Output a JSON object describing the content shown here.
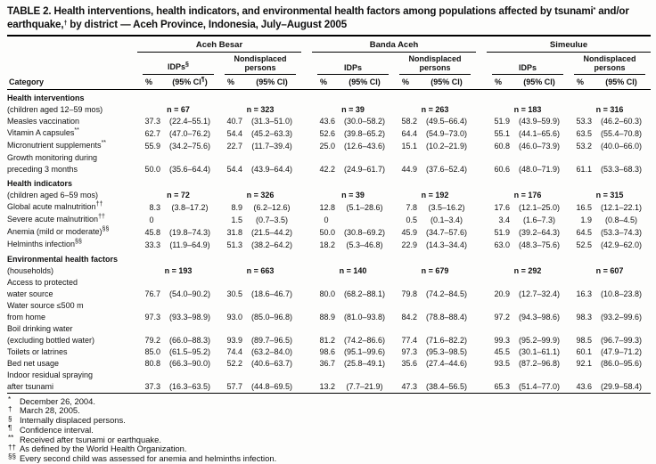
{
  "title_parts": [
    {
      "text": "TABLE 2. Health interventions, health indicators, and environmental health factors among populations affected by tsunami"
    },
    {
      "sup": "*"
    },
    {
      "text": " and/or earthquake,"
    },
    {
      "sup": "†"
    },
    {
      "text": " by district — Aceh Province, Indonesia, July–August 2005"
    }
  ],
  "header": {
    "category_label": "Category",
    "pct_label": "%",
    "ci_label": "(95% CI)",
    "ci_first": {
      "pre": "(95% CI",
      "sup": "¶",
      "post": ")"
    },
    "groups": [
      {
        "name": "Aceh Besar",
        "idps": "IDPs",
        "idps_sup": "§",
        "nondisplaced": "Nondisplaced persons"
      },
      {
        "name": "Banda Aceh",
        "idps": "IDPs",
        "idps_sup": "",
        "nondisplaced": "Nondisplaced persons"
      },
      {
        "name": "Simeulue",
        "idps": "IDPs",
        "idps_sup": "",
        "nondisplaced": "Nondisplaced persons"
      }
    ]
  },
  "rows": [
    {
      "t": "section",
      "label": "Health interventions"
    },
    {
      "t": "n",
      "label": "(children aged 12–59 mos)",
      "values": [
        "n = 67",
        "n = 323",
        "n = 39",
        "n = 263",
        "n = 183",
        "n = 316"
      ]
    },
    {
      "t": "item",
      "label": "Measles vaccination",
      "sup": "",
      "cells": [
        [
          "37.3",
          "(22.4–55.1)"
        ],
        [
          "40.7",
          "(31.3–51.0)"
        ],
        [
          "43.6",
          "(30.0–58.2)"
        ],
        [
          "58.2",
          "(49.5–66.4)"
        ],
        [
          "51.9",
          "(43.9–59.9)"
        ],
        [
          "53.3",
          "(46.2–60.3)"
        ]
      ]
    },
    {
      "t": "item",
      "label": "Vitamin A capsules",
      "sup": "**",
      "cells": [
        [
          "62.7",
          "(47.0–76.2)"
        ],
        [
          "54.4",
          "(45.2–63.3)"
        ],
        [
          "52.6",
          "(39.8–65.2)"
        ],
        [
          "64.4",
          "(54.9–73.0)"
        ],
        [
          "55.1",
          "(44.1–65.6)"
        ],
        [
          "63.5",
          "(55.4–70.8)"
        ]
      ]
    },
    {
      "t": "item",
      "label": "Micronutrient supplements",
      "sup": "**",
      "cells": [
        [
          "55.9",
          "(34.2–75.6)"
        ],
        [
          "22.7",
          "(11.7–39.4)"
        ],
        [
          "25.0",
          "(12.6–43.6)"
        ],
        [
          "15.1",
          "(10.2–21.9)"
        ],
        [
          "60.8",
          "(46.0–73.9)"
        ],
        [
          "53.2",
          "(40.0–66.0)"
        ]
      ]
    },
    {
      "t": "label",
      "label": "Growth monitoring during"
    },
    {
      "t": "cont",
      "label": "preceding 3 months",
      "cells": [
        [
          "50.0",
          "(35.6–64.4)"
        ],
        [
          "54.4",
          "(43.9–64.4)"
        ],
        [
          "42.2",
          "(24.9–61.7)"
        ],
        [
          "44.9",
          "(37.6–52.4)"
        ],
        [
          "60.6",
          "(48.0–71.9)"
        ],
        [
          "61.1",
          "(53.3–68.3)"
        ]
      ]
    },
    {
      "t": "section",
      "label": "Health indicators"
    },
    {
      "t": "n",
      "label": "(children aged 6–59 mos)",
      "values": [
        "n = 72",
        "n = 326",
        "n = 39",
        "n = 192",
        "n = 176",
        "n = 315"
      ]
    },
    {
      "t": "item",
      "label": "Global acute malnutrition",
      "sup": "††",
      "cells": [
        [
          "8.3",
          "(3.8–17.2)"
        ],
        [
          "8.9",
          "(6.2–12.6)"
        ],
        [
          "12.8",
          "(5.1–28.6)"
        ],
        [
          "7.8",
          "(3.5–16.2)"
        ],
        [
          "17.6",
          "(12.1–25.0)"
        ],
        [
          "16.5",
          "(12.1–22.1)"
        ]
      ]
    },
    {
      "t": "item",
      "label": "Severe acute malnutrition",
      "sup": "††",
      "cells": [
        [
          "0",
          ""
        ],
        [
          "1.5",
          "(0.7–3.5)"
        ],
        [
          "0",
          ""
        ],
        [
          "0.5",
          "(0.1–3.4)"
        ],
        [
          "3.4",
          "(1.6–7.3)"
        ],
        [
          "1.9",
          "(0.8–4.5)"
        ]
      ]
    },
    {
      "t": "item",
      "label": "Anemia (mild or moderate)",
      "sup": "§§",
      "cells": [
        [
          "45.8",
          "(19.8–74.3)"
        ],
        [
          "31.8",
          "(21.5–44.2)"
        ],
        [
          "50.0",
          "(30.8–69.2)"
        ],
        [
          "45.9",
          "(34.7–57.6)"
        ],
        [
          "51.9",
          "(39.2–64.3)"
        ],
        [
          "64.5",
          "(53.3–74.3)"
        ]
      ]
    },
    {
      "t": "item",
      "label": "Helminths infection",
      "sup": "§§",
      "cells": [
        [
          "33.3",
          "(11.9–64.9)"
        ],
        [
          "51.3",
          "(38.2–64.2)"
        ],
        [
          "18.2",
          "(5.3–46.8)"
        ],
        [
          "22.9",
          "(14.3–34.4)"
        ],
        [
          "63.0",
          "(48.3–75.6)"
        ],
        [
          "52.5",
          "(42.9–62.0)"
        ]
      ]
    },
    {
      "t": "section",
      "label": "Environmental health factors"
    },
    {
      "t": "n",
      "label": "(households)",
      "values": [
        "n = 193",
        "n = 663",
        "n = 140",
        "n = 679",
        "n = 292",
        "n = 607"
      ]
    },
    {
      "t": "label",
      "label": "Access to protected"
    },
    {
      "t": "cont",
      "label": "water source",
      "cells": [
        [
          "76.7",
          "(54.0–90.2)"
        ],
        [
          "30.5",
          "(18.6–46.7)"
        ],
        [
          "80.0",
          "(68.2–88.1)"
        ],
        [
          "79.8",
          "(74.2–84.5)"
        ],
        [
          "20.9",
          "(12.7–32.4)"
        ],
        [
          "16.3",
          "(10.8–23.8)"
        ]
      ]
    },
    {
      "t": "label",
      "label": "Water source ≤500 m"
    },
    {
      "t": "cont",
      "label": "from home",
      "cells": [
        [
          "97.3",
          "(93.3–98.9)"
        ],
        [
          "93.0",
          "(85.0–96.8)"
        ],
        [
          "88.9",
          "(81.0–93.8)"
        ],
        [
          "84.2",
          "(78.8–88.4)"
        ],
        [
          "97.2",
          "(94.3–98.6)"
        ],
        [
          "98.3",
          "(93.2–99.6)"
        ]
      ]
    },
    {
      "t": "label",
      "label": "Boil drinking water"
    },
    {
      "t": "cont",
      "label": "(excluding bottled water)",
      "cells": [
        [
          "79.2",
          "(66.0–88.3)"
        ],
        [
          "93.9",
          "(89.7–96.5)"
        ],
        [
          "81.2",
          "(74.2–86.6)"
        ],
        [
          "77.4",
          "(71.6–82.2)"
        ],
        [
          "99.3",
          "(95.2–99.9)"
        ],
        [
          "98.5",
          "(96.7–99.3)"
        ]
      ]
    },
    {
      "t": "item",
      "label": "Toilets or latrines",
      "sup": "",
      "cells": [
        [
          "85.0",
          "(61.5–95.2)"
        ],
        [
          "74.4",
          "(63.2–84.0)"
        ],
        [
          "98.6",
          "(95.1–99.6)"
        ],
        [
          "97.3",
          "(95.3–98.5)"
        ],
        [
          "45.5",
          "(30.1–61.1)"
        ],
        [
          "60.1",
          "(47.9–71.2)"
        ]
      ]
    },
    {
      "t": "item",
      "label": "Bed net usage",
      "sup": "",
      "cells": [
        [
          "80.8",
          "(66.3–90.0)"
        ],
        [
          "52.2",
          "(40.6–63.7)"
        ],
        [
          "36.7",
          "(25.8–49.1)"
        ],
        [
          "35.6",
          "(27.4–44.6)"
        ],
        [
          "93.5",
          "(87.2–96.8)"
        ],
        [
          "92.1",
          "(86.0–95.6)"
        ]
      ]
    },
    {
      "t": "label",
      "label": "Indoor residual spraying"
    },
    {
      "t": "cont",
      "label": "after tsunami",
      "cells": [
        [
          "37.3",
          "(16.3–63.5)"
        ],
        [
          "57.7",
          "(44.8–69.5)"
        ],
        [
          "13.2",
          "(7.7–21.9)"
        ],
        [
          "47.3",
          "(38.4–56.5)"
        ],
        [
          "65.3",
          "(51.4–77.0)"
        ],
        [
          "43.6",
          "(29.9–58.4)"
        ]
      ]
    }
  ],
  "footnotes": [
    {
      "sym": "*",
      "text": "December 26, 2004."
    },
    {
      "sym": "†",
      "text": "March 28, 2005."
    },
    {
      "sym": "§",
      "text": "Internally displaced persons."
    },
    {
      "sym": "¶",
      "text": "Confidence interval."
    },
    {
      "sym": "**",
      "text": "Received after tsunami or earthquake."
    },
    {
      "sym": "††",
      "text": "As defined by the World Health Organization."
    },
    {
      "sym": "§§",
      "text": "Every second child was assessed for anemia and helminths infection."
    }
  ]
}
